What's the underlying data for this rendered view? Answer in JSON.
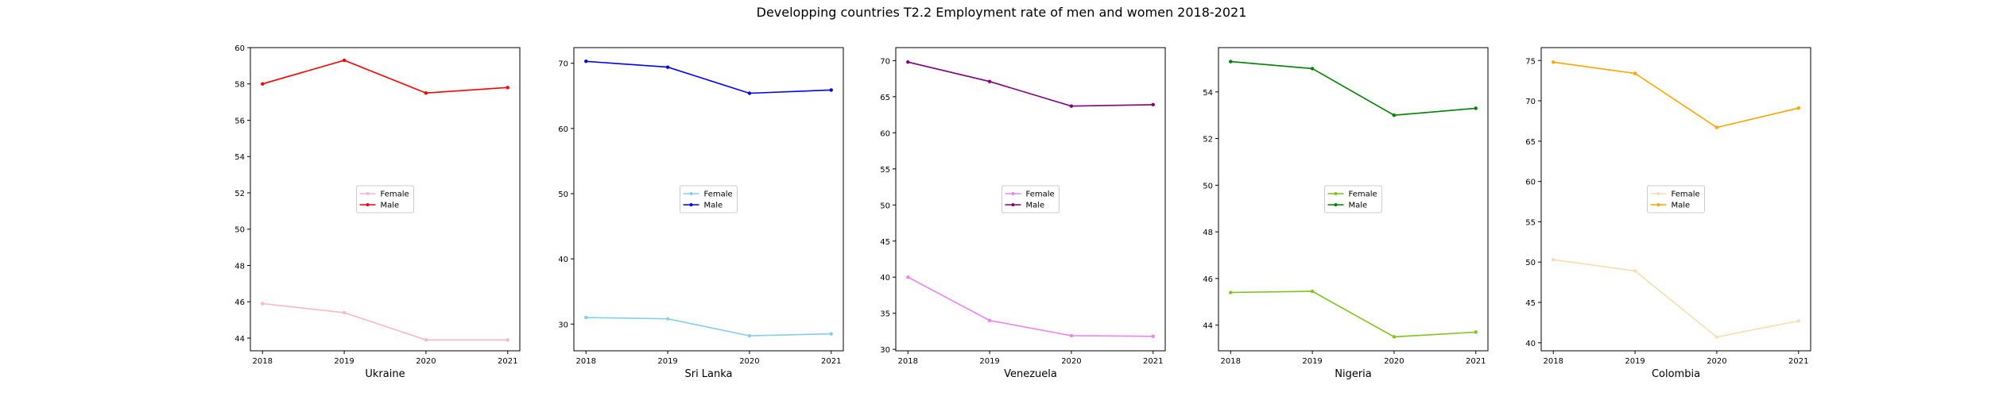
{
  "figure": {
    "title": "Developping countries T2.2 Employment rate of men and women 2018-2021"
  },
  "chart_data": [
    {
      "type": "line",
      "xlabel": "Ukraine",
      "x": [
        "2018",
        "2019",
        "2020",
        "2021"
      ],
      "ylim": [
        43.3,
        60.0
      ],
      "yticks": [
        44,
        46,
        48,
        50,
        52,
        54,
        56,
        58,
        60
      ],
      "legend": "center",
      "series": [
        {
          "name": "Female",
          "color": "#ffb6c1",
          "values": [
            45.9,
            45.4,
            43.9,
            43.9
          ]
        },
        {
          "name": "Male",
          "color": "#ff0000",
          "values": [
            58.0,
            59.3,
            57.5,
            57.8
          ]
        }
      ]
    },
    {
      "type": "line",
      "xlabel": "Sri Lanka",
      "x": [
        "2018",
        "2019",
        "2020",
        "2021"
      ],
      "ylim": [
        25.9,
        72.4
      ],
      "yticks": [
        30,
        40,
        50,
        60,
        70
      ],
      "legend": "center",
      "series": [
        {
          "name": "Female",
          "color": "#87ceeb",
          "values": [
            31.0,
            30.8,
            28.2,
            28.5
          ]
        },
        {
          "name": "Male",
          "color": "#0000ff",
          "values": [
            70.3,
            69.4,
            65.4,
            65.9
          ]
        }
      ]
    },
    {
      "type": "line",
      "xlabel": "Venezuela",
      "x": [
        "2018",
        "2019",
        "2020",
        "2021"
      ],
      "ylim": [
        29.8,
        71.8
      ],
      "yticks": [
        30,
        35,
        40,
        45,
        50,
        55,
        60,
        65,
        70
      ],
      "legend": "center",
      "series": [
        {
          "name": "Female",
          "color": "#ee82ee",
          "values": [
            40.0,
            34.0,
            31.9,
            31.8
          ]
        },
        {
          "name": "Male",
          "color": "#800080",
          "values": [
            69.8,
            67.1,
            63.7,
            63.9
          ]
        }
      ]
    },
    {
      "type": "line",
      "xlabel": "Nigeria",
      "x": [
        "2018",
        "2019",
        "2020",
        "2021"
      ],
      "ylim": [
        42.9,
        55.9
      ],
      "yticks": [
        44,
        46,
        48,
        50,
        52,
        54
      ],
      "legend": "center",
      "series": [
        {
          "name": "Female",
          "color": "#7fc31c",
          "values": [
            45.4,
            45.45,
            43.5,
            43.7
          ]
        },
        {
          "name": "Male",
          "color": "#008000",
          "values": [
            55.3,
            55.0,
            53.0,
            53.3
          ]
        }
      ]
    },
    {
      "type": "line",
      "xlabel": "Colombia",
      "x": [
        "2018",
        "2019",
        "2020",
        "2021"
      ],
      "ylim": [
        39.0,
        76.6
      ],
      "yticks": [
        40,
        45,
        50,
        55,
        60,
        65,
        70,
        75
      ],
      "legend": "center",
      "series": [
        {
          "name": "Female",
          "color": "#f5deb3",
          "values": [
            50.3,
            48.9,
            40.7,
            42.7
          ]
        },
        {
          "name": "Male",
          "color": "#ffa500",
          "values": [
            74.8,
            73.4,
            66.7,
            69.1
          ]
        }
      ]
    }
  ]
}
